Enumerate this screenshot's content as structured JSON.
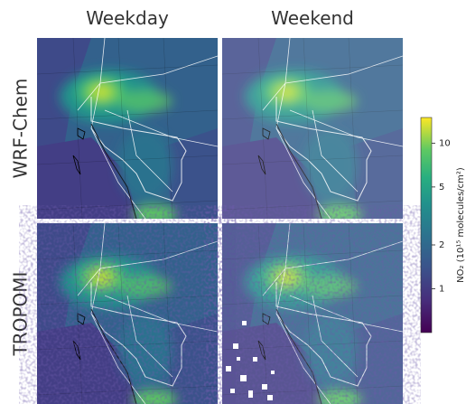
{
  "columns": [
    "Weekday",
    "Weekend"
  ],
  "rows": [
    "WRF-Chem",
    "TROPOMI"
  ],
  "colorbar": {
    "label": "NO₂ (10¹⁵ molecules/cm²)",
    "lim": [
      0.5,
      15
    ],
    "ticks": [
      1,
      2,
      5,
      10
    ],
    "scale": "log"
  }
}
